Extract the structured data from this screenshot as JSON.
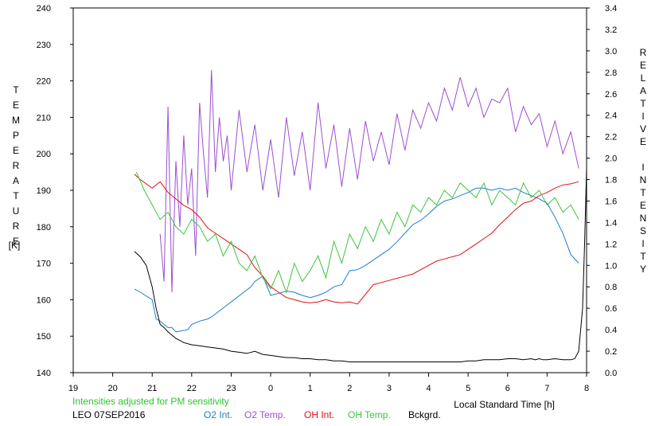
{
  "chart_data": {
    "type": "line",
    "xlabel": "Local Standard Time [h]",
    "ylabel_left_letters": [
      "T",
      "E",
      "M",
      "P",
      "E",
      "R",
      "A",
      "T",
      "U",
      "R",
      "E"
    ],
    "ylabel_left_unit": "[K]",
    "ylabel_right_letters": [
      "R",
      "E",
      "L",
      "A",
      "T",
      "I",
      "V",
      "E",
      " ",
      "I",
      "N",
      "T",
      "E",
      "N",
      "S",
      "I",
      "T",
      "Y"
    ],
    "x_range": [
      19,
      32
    ],
    "x_ticks": [
      19,
      20,
      21,
      22,
      23,
      24,
      25,
      26,
      27,
      28,
      29,
      30,
      31,
      32
    ],
    "x_tick_labels": [
      "19",
      "20",
      "21",
      "22",
      "23",
      "0",
      "1",
      "2",
      "3",
      "4",
      "5",
      "6",
      "7",
      "8"
    ],
    "y_left_range": [
      140,
      240
    ],
    "y_left_ticks": [
      "140",
      "150",
      "160",
      "170",
      "180",
      "190",
      "200",
      "210",
      "220",
      "230",
      "240"
    ],
    "y_right_range": [
      0.0,
      3.4
    ],
    "y_right_ticks": [
      "0.0",
      "0.2",
      "0.4",
      "0.6",
      "0.8",
      "1.0",
      "1.2",
      "1.4",
      "1.6",
      "1.8",
      "2.0",
      "2.2",
      "2.4",
      "2.6",
      "2.8",
      "3.0",
      "3.2",
      "3.4"
    ],
    "note": "Intensities adjusted for PM sensitivity",
    "station": "LEO 07SEP2016",
    "series": [
      {
        "name": "O2 Int.",
        "axis": "right",
        "color": "#1a7fd4",
        "x": [
          20.55,
          20.7,
          21.0,
          21.1,
          21.2,
          21.4,
          21.5,
          21.6,
          21.9,
          22.0,
          22.2,
          22.4,
          22.5,
          23.5,
          23.6,
          23.8,
          24.0,
          24.2,
          24.4,
          24.6,
          24.8,
          25.0,
          25.2,
          25.4,
          25.6,
          25.8,
          26.0,
          26.2,
          26.4,
          26.6,
          26.8,
          27.0,
          27.2,
          27.4,
          27.6,
          27.8,
          28.0,
          28.2,
          28.4,
          28.6,
          28.8,
          29.0,
          29.2,
          29.4,
          29.6,
          29.8,
          30.0,
          30.2,
          30.4,
          30.6,
          30.8,
          31.0,
          31.2,
          31.4,
          31.6,
          31.8
        ],
        "values": [
          0.78,
          0.75,
          0.68,
          0.5,
          0.48,
          0.42,
          0.42,
          0.38,
          0.4,
          0.45,
          0.48,
          0.5,
          0.52,
          0.8,
          0.85,
          0.9,
          0.72,
          0.74,
          0.76,
          0.75,
          0.72,
          0.7,
          0.72,
          0.75,
          0.8,
          0.82,
          0.95,
          0.96,
          1.0,
          1.05,
          1.1,
          1.15,
          1.22,
          1.3,
          1.38,
          1.42,
          1.48,
          1.55,
          1.6,
          1.62,
          1.65,
          1.68,
          1.72,
          1.72,
          1.7,
          1.72,
          1.7,
          1.72,
          1.68,
          1.65,
          1.62,
          1.58,
          1.45,
          1.3,
          1.1,
          1.02
        ]
      },
      {
        "name": "O2 Temp.",
        "axis": "left",
        "color": "#9b4fd0",
        "x": [
          21.2,
          21.3,
          21.4,
          21.5,
          21.6,
          21.7,
          21.8,
          21.9,
          22.0,
          22.1,
          22.2,
          22.3,
          22.4,
          22.5,
          22.6,
          22.7,
          22.8,
          22.9,
          23.0,
          23.2,
          23.4,
          23.6,
          23.8,
          24.0,
          24.2,
          24.4,
          24.6,
          24.8,
          25.0,
          25.2,
          25.4,
          25.6,
          25.8,
          26.0,
          26.2,
          26.4,
          26.6,
          26.8,
          27.0,
          27.2,
          27.4,
          27.6,
          27.8,
          28.0,
          28.2,
          28.4,
          28.6,
          28.8,
          29.0,
          29.2,
          29.4,
          29.6,
          29.8,
          30.0,
          30.2,
          30.4,
          30.6,
          30.8,
          31.0,
          31.2,
          31.4,
          31.6,
          31.8
        ],
        "values": [
          178,
          165,
          213,
          162,
          198,
          180,
          205,
          186,
          196,
          172,
          214,
          200,
          188,
          223,
          195,
          210,
          198,
          205,
          190,
          212,
          195,
          208,
          190,
          204,
          188,
          210,
          194,
          206,
          190,
          214,
          196,
          208,
          191,
          207,
          193,
          209,
          198,
          206,
          197,
          211,
          201,
          212,
          207,
          214,
          209,
          218,
          212,
          221,
          213,
          218,
          210,
          215,
          214,
          218,
          206,
          213,
          208,
          211,
          202,
          209,
          200,
          206,
          196
        ]
      },
      {
        "name": "OH Int.",
        "axis": "right",
        "color": "#e01010",
        "x": [
          20.55,
          20.7,
          21.0,
          21.2,
          21.4,
          21.6,
          21.8,
          22.0,
          22.2,
          22.4,
          22.6,
          22.8,
          23.0,
          23.2,
          23.4,
          23.6,
          23.8,
          24.0,
          24.2,
          24.4,
          24.6,
          24.8,
          25.0,
          25.2,
          25.4,
          25.6,
          25.8,
          26.0,
          26.2,
          26.6,
          26.8,
          27.0,
          27.2,
          27.4,
          27.6,
          27.8,
          28.0,
          28.2,
          28.4,
          28.6,
          28.8,
          29.0,
          29.2,
          29.4,
          29.6,
          29.8,
          30.0,
          30.2,
          30.4,
          30.6,
          30.8,
          31.0,
          31.2,
          31.4,
          31.6,
          31.8
        ],
        "values": [
          1.85,
          1.8,
          1.72,
          1.78,
          1.68,
          1.62,
          1.56,
          1.52,
          1.45,
          1.35,
          1.3,
          1.25,
          1.2,
          1.15,
          1.1,
          0.98,
          0.9,
          0.8,
          0.75,
          0.7,
          0.68,
          0.66,
          0.65,
          0.66,
          0.68,
          0.66,
          0.65,
          0.66,
          0.64,
          0.82,
          0.84,
          0.86,
          0.88,
          0.9,
          0.92,
          0.96,
          1.0,
          1.04,
          1.06,
          1.08,
          1.1,
          1.15,
          1.2,
          1.25,
          1.3,
          1.38,
          1.45,
          1.52,
          1.58,
          1.6,
          1.65,
          1.68,
          1.72,
          1.75,
          1.76,
          1.78
        ]
      },
      {
        "name": "OH Temp.",
        "axis": "left",
        "color": "#3ec43e",
        "x": [
          20.6,
          20.8,
          21.0,
          21.2,
          21.4,
          21.6,
          21.8,
          22.0,
          22.2,
          22.4,
          22.6,
          22.8,
          23.0,
          23.2,
          23.4,
          23.6,
          23.8,
          24.0,
          24.2,
          24.4,
          24.6,
          24.8,
          25.0,
          25.2,
          25.4,
          25.6,
          25.8,
          26.0,
          26.2,
          26.4,
          26.6,
          26.8,
          27.0,
          27.2,
          27.4,
          27.6,
          27.8,
          28.0,
          28.2,
          28.4,
          28.6,
          28.8,
          29.0,
          29.2,
          29.4,
          29.6,
          29.8,
          30.0,
          30.2,
          30.4,
          30.6,
          30.8,
          31.0,
          31.2,
          31.4,
          31.6,
          31.8
        ],
        "values": [
          195,
          190,
          186,
          182,
          184,
          180,
          178,
          182,
          180,
          176,
          178,
          172,
          176,
          170,
          168,
          172,
          166,
          163,
          168,
          162,
          170,
          165,
          168,
          172,
          166,
          176,
          170,
          178,
          174,
          180,
          176,
          182,
          178,
          184,
          180,
          186,
          184,
          188,
          186,
          190,
          188,
          192,
          190,
          188,
          192,
          186,
          190,
          188,
          186,
          192,
          188,
          190,
          186,
          188,
          184,
          186,
          182
        ]
      },
      {
        "name": "Bckgrd.",
        "axis": "right",
        "color": "#000000",
        "x": [
          20.55,
          20.7,
          20.85,
          21.0,
          21.1,
          21.2,
          21.3,
          21.4,
          21.5,
          21.6,
          21.7,
          21.8,
          22.0,
          22.2,
          22.4,
          22.6,
          22.8,
          23.0,
          23.2,
          23.4,
          23.6,
          23.8,
          24.0,
          24.2,
          24.4,
          24.6,
          24.8,
          25.0,
          25.2,
          25.4,
          25.6,
          25.8,
          26.0,
          26.2,
          26.4,
          26.6,
          26.8,
          27.0,
          27.2,
          27.4,
          27.6,
          27.8,
          28.0,
          28.2,
          28.4,
          28.6,
          28.8,
          29.0,
          29.2,
          29.4,
          29.6,
          29.8,
          30.0,
          30.2,
          30.4,
          30.6,
          30.7,
          30.8,
          30.9,
          31.0,
          31.2,
          31.4,
          31.6,
          31.7,
          31.8,
          31.9,
          31.95,
          32.0
        ],
        "values": [
          1.13,
          1.08,
          1.0,
          0.8,
          0.6,
          0.45,
          0.42,
          0.38,
          0.35,
          0.32,
          0.3,
          0.28,
          0.26,
          0.25,
          0.24,
          0.23,
          0.22,
          0.2,
          0.19,
          0.18,
          0.2,
          0.17,
          0.16,
          0.15,
          0.14,
          0.14,
          0.13,
          0.13,
          0.12,
          0.12,
          0.11,
          0.11,
          0.1,
          0.1,
          0.1,
          0.1,
          0.1,
          0.1,
          0.1,
          0.1,
          0.1,
          0.1,
          0.1,
          0.1,
          0.1,
          0.1,
          0.1,
          0.11,
          0.11,
          0.12,
          0.12,
          0.12,
          0.13,
          0.13,
          0.12,
          0.13,
          0.12,
          0.13,
          0.12,
          0.12,
          0.13,
          0.12,
          0.12,
          0.13,
          0.2,
          0.6,
          1.2,
          1.9
        ]
      }
    ]
  }
}
